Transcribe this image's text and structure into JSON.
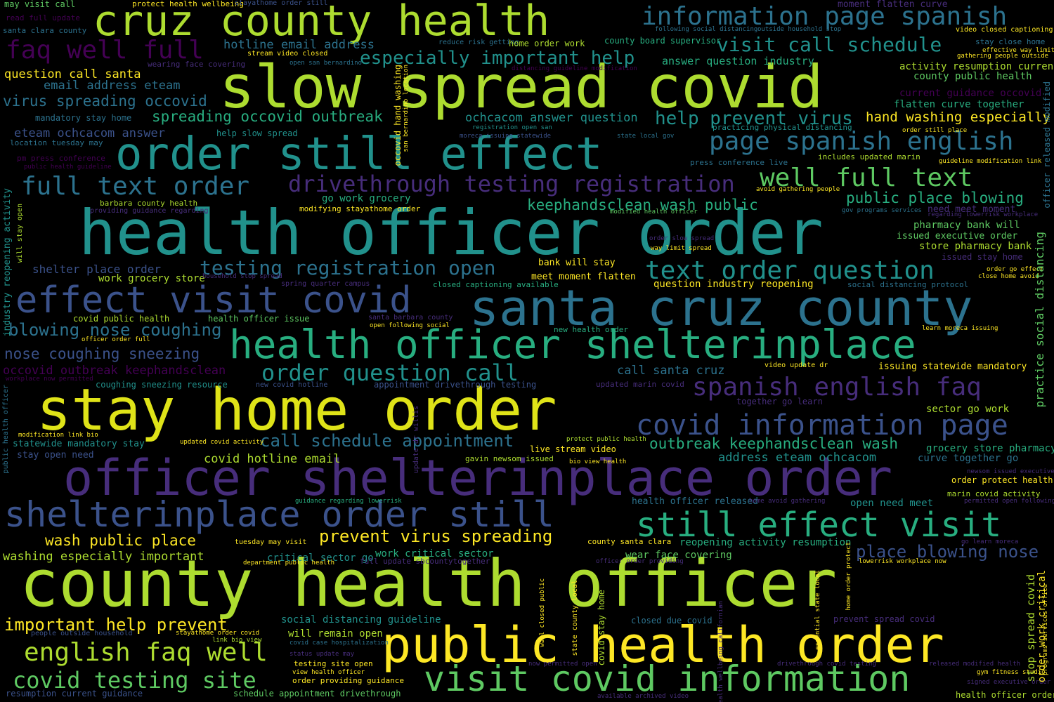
{
  "colors": {
    "background": "#000000",
    "palette": [
      "#440154",
      "#472d7b",
      "#3b528b",
      "#2c728e",
      "#21918c",
      "#28ae80",
      "#5ec962",
      "#addc30",
      "#fde725"
    ]
  },
  "words": [
    "county health officer",
    "slow spread covid",
    "health officer order",
    "stay home order",
    "public health order",
    "officer shelterinplace order",
    "santa cruz county",
    "cruz county health",
    "order still effect",
    "health officer shelterinplace",
    "visit covid information",
    "effect visit covid",
    "shelterinplace order still",
    "still effect visit",
    "covid information page",
    "information page spanish",
    "page spanish english",
    "spanish english faq",
    "text order question",
    "well full text",
    "full text order",
    "drivethrough testing registration",
    "english faq well",
    "covid testing site",
    "testing registration open",
    "order question call",
    "visit call schedule",
    "faq well full",
    "important help prevent",
    "especially important help",
    "call schedule appointment",
    "outbreak keephandsclean wash",
    "prevent virus spreading",
    "help prevent virus",
    "spreading occovid outbreak",
    "keephandsclean wash public",
    "blowing nose coughing",
    "nose coughing sneezing",
    "wash public place",
    "place blowing nose",
    "public place blowing",
    "virus spreading occovid",
    "hotline email address",
    "email address eteam",
    "question call santa",
    "washing especially important",
    "hand washing especially",
    "covid hotline email",
    "address eteam ochcacom",
    "ochcacom answer question",
    "eteam ochcacom answer",
    "answer question industry",
    "occovid outbreak keephandsclean",
    "shelter place order",
    "call santa cruz",
    "activity resumption current",
    "county public health",
    "current guidance occovid",
    "flatten curve together",
    "practice social distancing",
    "officer released modified",
    "stop spread covid",
    "order work critical",
    "social distancing guideline",
    "reopening activity resumption",
    "question industry reopening",
    "industry reopening activity",
    "wear face covering",
    "will remain open",
    "work critical sector",
    "critical sector go",
    "sector go work",
    "go work grocery",
    "work grocery store",
    "grocery store pharmacy",
    "store pharmacy bank",
    "pharmacy bank will",
    "bank will stay",
    "will stay open",
    "stay open need",
    "open need meet",
    "need meet moment",
    "meet moment flatten",
    "moment flatten curve",
    "curve together go",
    "together go learn",
    "issued executive order",
    "issued stay home",
    "mandatory stay home",
    "statewide mandatory stay",
    "issuing statewide mandatory",
    "health officer released",
    "covid public health",
    "health officer issue",
    "appointment drivethrough testing",
    "schedule appointment drivethrough",
    "resumption current guidance",
    "people outside household",
    "testing site open",
    "closed due covid",
    "prevent spread covid",
    "live stream video",
    "gavin newsom issued",
    "county santa clara",
    "santa clara county",
    "barbara county health",
    "providing guidance regarding",
    "modifying stayathome order",
    "coughing sneezing resource",
    "order protect health",
    "marin covid activity",
    "health officer order",
    "covid stay home",
    "state county local",
    "closed captioning available",
    "spring quarter campus",
    "new covid hotline",
    "updated marin covid",
    "public health officer",
    "video update dr",
    "new health order",
    "may visit call",
    "read full update",
    "protect health wellbeing",
    "stayathome order still",
    "reduce risk getting",
    "home order work",
    "county board supervisor",
    "stream video closed",
    "open san bernardino",
    "wearing face covering",
    "following social distancing",
    "outside household stop",
    "video closed captioning",
    "stay close home",
    "effective way limit",
    "gathering people outside",
    "distancing guideline modification",
    "registration open san",
    "moreca issuing statewide",
    "state local gov",
    "order still place",
    "occovid hand washing",
    "san bernardino location",
    "help slow spread",
    "location tuesday may",
    "practicing physical distancing",
    "pm press conference",
    "public health guideline",
    "press conference live",
    "includes updated marin",
    "guideline modification link",
    "avoid gathering people",
    "gov programs services",
    "regarding lowerrisk workplace",
    "modified health officer",
    "order slow spread",
    "way limit spread",
    "household stop spread",
    "order go effect",
    "close home avoid",
    "social distancing protocol",
    "officer order full",
    "santa barbara county",
    "open following social",
    "learn moreca issuing",
    "workplace now permitted",
    "update dr willis",
    "modification link bio",
    "updated covid activity",
    "protect public health",
    "bio view health",
    "newsom issued executive",
    "guidance regarding lowerrisk",
    "home avoid gathering",
    "permitted open following",
    "tuesday may visit",
    "department public health",
    "full update sbcountytogether",
    "officer order providing",
    "go learn moreca",
    "lowerrisk workplace now",
    "stayathome order covid",
    "link bio view",
    "covid case hospitalization",
    "status update may",
    "view health officer",
    "order providing guidance",
    "health wellbeing californian",
    "essential state local",
    "home order protect",
    "wall closed public",
    "now permitted open",
    "drivethrough covid testing",
    "released modified health",
    "gym fitness studio",
    "signed executive order",
    "available archived video",
    "programs services office"
  ]
}
